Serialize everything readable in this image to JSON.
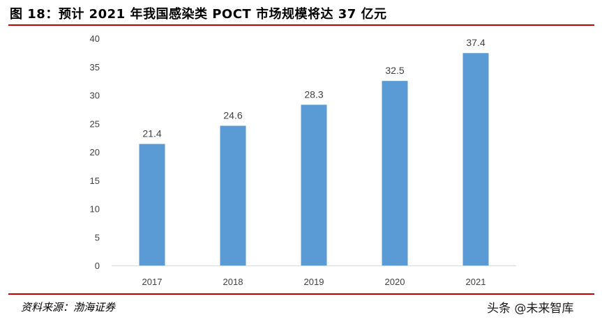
{
  "title": "图 18：预计 2021 年我国感染类 POCT 市场规模将达 37 亿元",
  "source": "资料来源：渤海证券",
  "watermark": "头条 @未来智库",
  "colors": {
    "bar": "#5b9bd5",
    "rule": "#c00000",
    "axis": "#d9d9d9",
    "text": "#404040"
  },
  "chart_data": {
    "type": "bar",
    "title": "",
    "xlabel": "",
    "ylabel": "",
    "categories": [
      "2017",
      "2018",
      "2019",
      "2020",
      "2021"
    ],
    "values": [
      21.4,
      24.6,
      28.3,
      32.5,
      37.4
    ],
    "data_labels": [
      "21.4",
      "24.6",
      "28.3",
      "32.5",
      "37.4"
    ],
    "ylim": [
      0,
      40
    ],
    "yticks": [
      0,
      5,
      10,
      15,
      20,
      25,
      30,
      35,
      40
    ],
    "grid": false,
    "legend": "none"
  }
}
